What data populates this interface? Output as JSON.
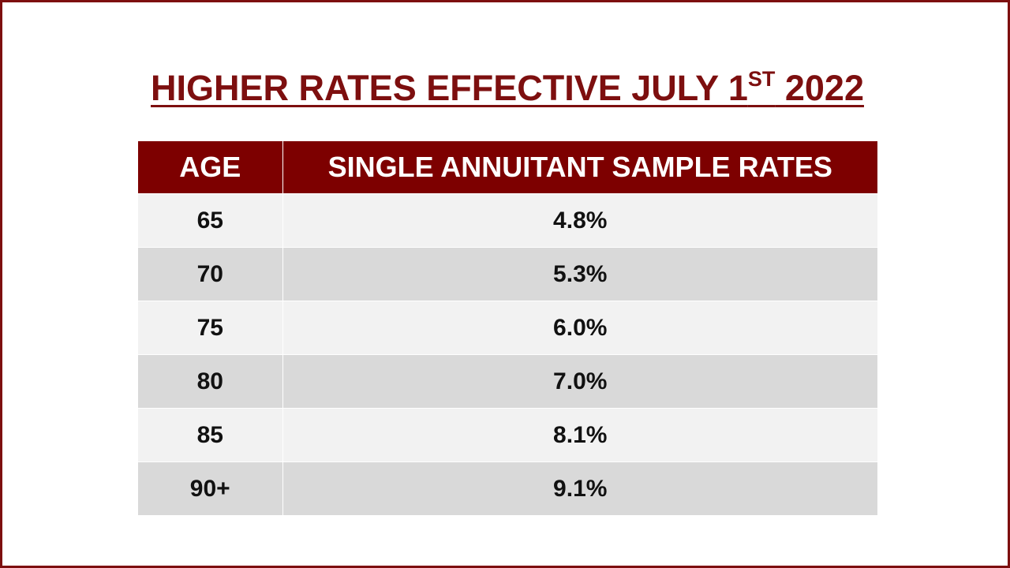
{
  "slide": {
    "title_main": "HIGHER RATES EFFECTIVE JULY 1",
    "title_sup": "ST",
    "title_year": " 2022",
    "accent_color": "#7d0f0f"
  },
  "table": {
    "headers": {
      "age": "AGE",
      "rates": "SINGLE ANNUITANT SAMPLE RATES"
    },
    "rows": [
      {
        "age": "65",
        "rate": "4.8%"
      },
      {
        "age": "70",
        "rate": "5.3%"
      },
      {
        "age": "75",
        "rate": "6.0%"
      },
      {
        "age": "80",
        "rate": "7.0%"
      },
      {
        "age": "85",
        "rate": "8.1%"
      },
      {
        "age": "90+",
        "rate": "9.1%"
      }
    ],
    "header_bg": "#7d0000",
    "row_colors": [
      "#f2f2f2",
      "#d9d9d9"
    ]
  }
}
